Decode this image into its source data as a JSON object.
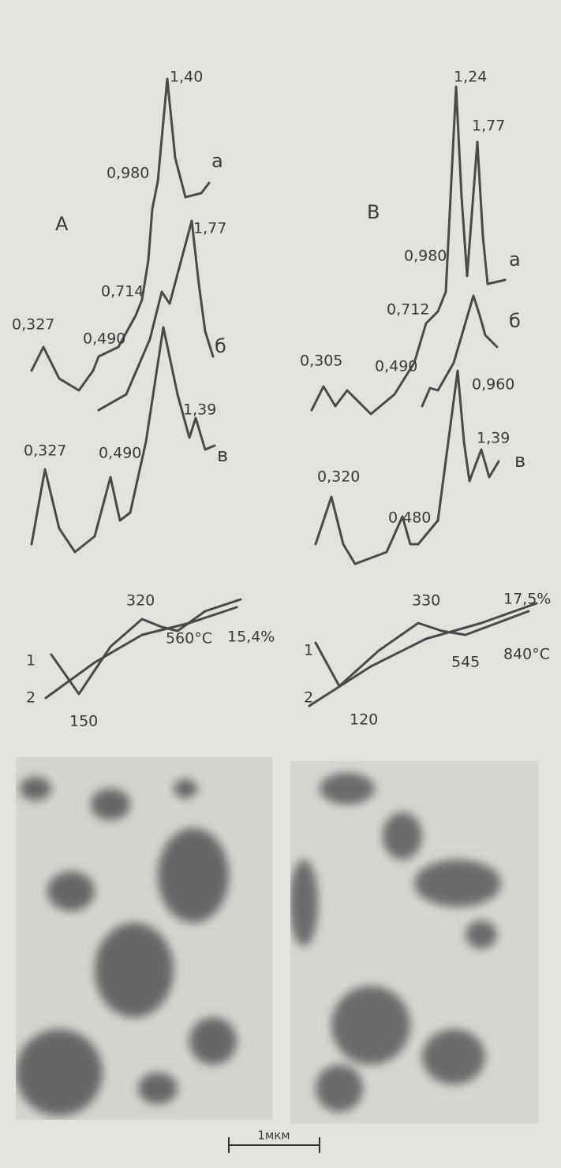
{
  "panels": [
    {
      "label": "A",
      "diffraction": [
        {
          "label": "а",
          "peaks": [
            "0,327",
            "0,490",
            "0,714",
            "0,980",
            "1,40"
          ]
        },
        {
          "label": "б",
          "peaks": [
            "1,77"
          ]
        },
        {
          "label": "в",
          "peaks": [
            "0,327",
            "0,490",
            "1,39"
          ]
        }
      ],
      "thermal": {
        "curves": [
          "1",
          "2"
        ],
        "labels": [
          "320",
          "150",
          "560°C",
          "15,4%"
        ]
      }
    },
    {
      "label": "B",
      "diffraction": [
        {
          "label": "а",
          "peaks": [
            "0,305",
            "0,490",
            "0,712",
            "0,980",
            "1,24",
            "1,77"
          ]
        },
        {
          "label": "б",
          "peaks": [
            "0,960"
          ]
        },
        {
          "label": "в",
          "peaks": [
            "0,320",
            "0,480",
            "1,39"
          ]
        }
      ],
      "thermal": {
        "curves": [
          "1",
          "2"
        ],
        "labels": [
          "330",
          "120",
          "545",
          "840°C",
          "17,5%"
        ]
      }
    }
  ],
  "scale_bar": "1мкм"
}
